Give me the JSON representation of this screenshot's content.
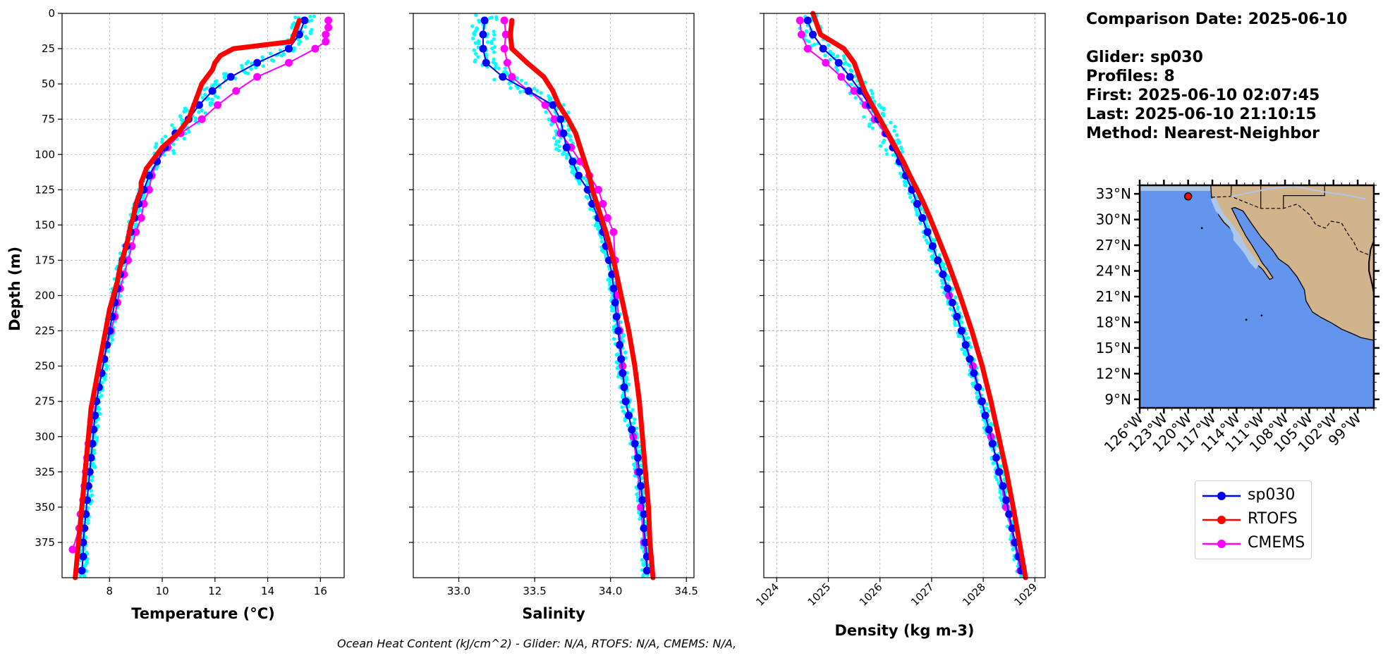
{
  "info": {
    "comparison_date": "Comparison Date: 2025-06-10",
    "glider": "Glider: sp030",
    "profiles": "Profiles: 8",
    "first": "First: 2025-06-10 02:07:45",
    "last": "Last: 2025-06-10 21:10:15",
    "method": "Method: Nearest-Neighbor"
  },
  "footer": "Ocean Heat Content (kJ/cm^2) - Glider: N/A,  RTOFS: N/A,  CMEMS: N/A,",
  "colors": {
    "glider": "#0000ff",
    "rtofs": "#ff0000",
    "cmems": "#ff00ff",
    "raw": "#00ffff",
    "ocean": "#6495ed",
    "land": "#d2b48c",
    "lakes": "#aec7e8",
    "grid": "#b0b0b0"
  },
  "chart_data": [
    {
      "type": "line",
      "xlabel": "Temperature (°C)",
      "ylabel": "Depth (m)",
      "xlim": [
        6.2,
        16.9
      ],
      "ylim": [
        400,
        0
      ],
      "xticks": [
        8,
        10,
        12,
        14,
        16
      ],
      "yticks": [
        0,
        25,
        50,
        75,
        100,
        125,
        150,
        175,
        200,
        225,
        250,
        275,
        300,
        325,
        350,
        375
      ],
      "grid": true,
      "depth": [
        5,
        15,
        25,
        35,
        45,
        55,
        65,
        75,
        85,
        95,
        105,
        115,
        125,
        135,
        145,
        155,
        165,
        175,
        185,
        195,
        205,
        215,
        225,
        235,
        245,
        255,
        265,
        275,
        285,
        295,
        305,
        315,
        325,
        335,
        345,
        355,
        365,
        375,
        385,
        395
      ],
      "series": [
        {
          "name": "sp030",
          "values": [
            15.4,
            15.2,
            14.8,
            13.6,
            12.6,
            11.9,
            11.4,
            11.0,
            10.5,
            10.1,
            9.8,
            9.5,
            9.3,
            9.1,
            8.95,
            8.8,
            8.65,
            8.5,
            8.4,
            8.3,
            8.2,
            8.1,
            8.0,
            7.9,
            7.8,
            7.7,
            7.6,
            7.5,
            7.45,
            7.4,
            7.35,
            7.3,
            7.25,
            7.2,
            7.15,
            7.1,
            7.05,
            7.0,
            7.0,
            6.95
          ]
        },
        {
          "name": "RTOFS",
          "depth": [
            5,
            10,
            15,
            20,
            25,
            30,
            35,
            40,
            45,
            50,
            55,
            60,
            65,
            70,
            75,
            80,
            85,
            90,
            95,
            100,
            105,
            110,
            115,
            120,
            125,
            130,
            135,
            140,
            145,
            150,
            160,
            170,
            180,
            190,
            200,
            210,
            220,
            230,
            240,
            250,
            260,
            270,
            280,
            290,
            300,
            310,
            320,
            330,
            340,
            350,
            360,
            370,
            380,
            390,
            400
          ],
          "values": [
            15.2,
            15.1,
            15.0,
            14.9,
            12.7,
            12.2,
            12.0,
            11.9,
            11.7,
            11.5,
            11.4,
            11.3,
            11.2,
            11.1,
            11.0,
            10.8,
            10.6,
            10.3,
            10.0,
            9.8,
            9.6,
            9.4,
            9.3,
            9.2,
            9.2,
            9.1,
            9.0,
            8.95,
            8.9,
            8.8,
            8.7,
            8.55,
            8.4,
            8.3,
            8.15,
            8.0,
            7.9,
            7.8,
            7.7,
            7.6,
            7.5,
            7.4,
            7.3,
            7.25,
            7.2,
            7.15,
            7.1,
            7.05,
            7.0,
            6.95,
            6.9,
            6.85,
            6.8,
            6.75,
            6.7
          ]
        },
        {
          "name": "CMEMS",
          "depth": [
            5,
            10,
            15,
            20,
            25,
            35,
            45,
            55,
            65,
            75,
            85,
            95,
            105,
            115,
            125,
            135,
            145,
            155,
            165,
            175,
            185,
            195,
            205,
            215,
            225,
            235,
            245,
            255,
            265,
            275,
            285,
            295,
            305,
            315,
            325,
            335,
            345,
            355,
            365,
            380
          ],
          "values": [
            16.3,
            16.3,
            16.2,
            16.2,
            15.8,
            14.8,
            13.6,
            12.8,
            12.1,
            11.5,
            10.7,
            10.2,
            9.8,
            9.6,
            9.5,
            9.3,
            9.2,
            9.0,
            8.85,
            8.7,
            8.55,
            8.4,
            8.3,
            8.2,
            8.05,
            7.9,
            7.8,
            7.7,
            7.6,
            7.5,
            7.4,
            7.3,
            7.2,
            7.15,
            7.1,
            7.05,
            7.0,
            6.9,
            6.85,
            6.6
          ]
        }
      ]
    },
    {
      "type": "line",
      "xlabel": "Salinity",
      "xlim": [
        32.7,
        34.55
      ],
      "ylim": [
        400,
        0
      ],
      "xticks": [
        "33.0",
        "33.5",
        "34.0",
        "34.5"
      ],
      "grid": true,
      "depth": [
        5,
        15,
        25,
        35,
        45,
        55,
        65,
        75,
        85,
        95,
        105,
        115,
        125,
        135,
        145,
        155,
        165,
        175,
        185,
        195,
        205,
        215,
        225,
        235,
        245,
        255,
        265,
        275,
        285,
        295,
        305,
        315,
        325,
        335,
        345,
        355,
        365,
        375,
        385,
        395
      ],
      "series": [
        {
          "name": "sp030",
          "values": [
            33.17,
            33.16,
            33.16,
            33.18,
            33.29,
            33.46,
            33.62,
            33.67,
            33.69,
            33.71,
            33.75,
            33.79,
            33.85,
            33.88,
            33.92,
            33.95,
            33.97,
            33.99,
            34.01,
            34.02,
            34.03,
            34.04,
            34.05,
            34.06,
            34.07,
            34.08,
            34.09,
            34.1,
            34.12,
            34.14,
            34.16,
            34.18,
            34.19,
            34.2,
            34.21,
            34.22,
            34.22,
            34.23,
            34.24,
            34.24
          ]
        },
        {
          "name": "RTOFS",
          "depth": [
            5,
            15,
            25,
            35,
            45,
            55,
            65,
            75,
            85,
            95,
            105,
            115,
            125,
            135,
            145,
            155,
            175,
            200,
            225,
            250,
            275,
            300,
            325,
            350,
            375,
            400
          ],
          "values": [
            33.35,
            33.34,
            33.35,
            33.45,
            33.56,
            33.62,
            33.66,
            33.72,
            33.77,
            33.8,
            33.83,
            33.86,
            33.88,
            33.91,
            33.94,
            33.97,
            34.02,
            34.07,
            34.12,
            34.16,
            34.19,
            34.21,
            34.23,
            34.25,
            34.26,
            34.28
          ]
        },
        {
          "name": "CMEMS",
          "depth": [
            5,
            15,
            25,
            35,
            45,
            55,
            65,
            75,
            85,
            95,
            105,
            115,
            125,
            135,
            145,
            155,
            175,
            200,
            225,
            250,
            275,
            300,
            325,
            350,
            375,
            395
          ],
          "values": [
            33.3,
            33.31,
            33.3,
            33.32,
            33.35,
            33.46,
            33.57,
            33.63,
            33.67,
            33.74,
            33.8,
            33.86,
            33.92,
            33.95,
            33.98,
            34.02,
            34.03,
            34.04,
            34.06,
            34.08,
            34.1,
            34.15,
            34.18,
            34.2,
            34.22,
            34.24
          ]
        }
      ]
    },
    {
      "type": "line",
      "xlabel": "Density (kg m-3)",
      "xlim": [
        1023.75,
        1029.2
      ],
      "ylim": [
        400,
        0
      ],
      "xticks": [
        "1024",
        "1025",
        "1026",
        "1027",
        "1028",
        "1029"
      ],
      "grid": true,
      "depth": [
        5,
        15,
        25,
        35,
        45,
        55,
        65,
        75,
        85,
        95,
        105,
        115,
        125,
        135,
        145,
        155,
        165,
        175,
        185,
        195,
        205,
        215,
        225,
        235,
        245,
        255,
        265,
        275,
        285,
        295,
        305,
        315,
        325,
        335,
        345,
        355,
        365,
        375,
        385,
        395
      ],
      "series": [
        {
          "name": "sp030",
          "values": [
            1024.6,
            1024.7,
            1024.9,
            1025.2,
            1025.42,
            1025.62,
            1025.8,
            1025.96,
            1026.12,
            1026.25,
            1026.38,
            1026.5,
            1026.62,
            1026.72,
            1026.82,
            1026.92,
            1027.02,
            1027.12,
            1027.22,
            1027.31,
            1027.4,
            1027.49,
            1027.58,
            1027.66,
            1027.74,
            1027.82,
            1027.9,
            1027.97,
            1028.04,
            1028.11,
            1028.18,
            1028.25,
            1028.31,
            1028.38,
            1028.44,
            1028.5,
            1028.56,
            1028.62,
            1028.68,
            1028.74
          ]
        },
        {
          "name": "RTOFS",
          "depth": [
            0,
            5,
            15,
            25,
            35,
            45,
            55,
            65,
            75,
            85,
            95,
            105,
            115,
            125,
            135,
            145,
            155,
            175,
            200,
            225,
            250,
            275,
            300,
            325,
            350,
            375,
            400
          ],
          "values": [
            1024.7,
            1024.75,
            1024.85,
            1025.3,
            1025.5,
            1025.6,
            1025.7,
            1025.85,
            1026.0,
            1026.15,
            1026.3,
            1026.45,
            1026.58,
            1026.72,
            1026.85,
            1026.97,
            1027.08,
            1027.3,
            1027.55,
            1027.78,
            1027.98,
            1028.15,
            1028.3,
            1028.45,
            1028.58,
            1028.7,
            1028.82
          ]
        },
        {
          "name": "CMEMS",
          "depth": [
            5,
            15,
            25,
            35,
            45,
            55,
            65,
            75,
            85,
            95,
            105,
            115,
            125,
            135,
            145,
            155,
            175,
            200,
            225,
            250,
            275,
            300,
            325,
            350,
            375,
            395
          ],
          "values": [
            1024.45,
            1024.48,
            1024.6,
            1024.95,
            1025.25,
            1025.5,
            1025.72,
            1025.9,
            1026.1,
            1026.25,
            1026.38,
            1026.5,
            1026.62,
            1026.72,
            1026.82,
            1026.92,
            1027.12,
            1027.34,
            1027.58,
            1027.8,
            1027.98,
            1028.15,
            1028.3,
            1028.44,
            1028.6,
            1028.72
          ]
        }
      ]
    },
    {
      "type": "map",
      "lat_ticks": [
        "33°N",
        "30°N",
        "27°N",
        "24°N",
        "21°N",
        "18°N",
        "15°N",
        "12°N",
        "9°N"
      ],
      "lon_ticks": [
        "126°W",
        "123°W",
        "120°W",
        "117°W",
        "114°W",
        "111°W",
        "108°W",
        "105°W",
        "102°W",
        "99°W"
      ],
      "extent": {
        "lon_min": -126,
        "lon_max": -97,
        "lat_min": 8,
        "lat_max": 34
      },
      "glider_position": {
        "lon": -120.0,
        "lat": 32.7
      }
    }
  ],
  "legend": [
    {
      "label": "sp030",
      "color": "#0000ff"
    },
    {
      "label": "RTOFS",
      "color": "#ff0000"
    },
    {
      "label": "CMEMS",
      "color": "#ff00ff"
    }
  ]
}
